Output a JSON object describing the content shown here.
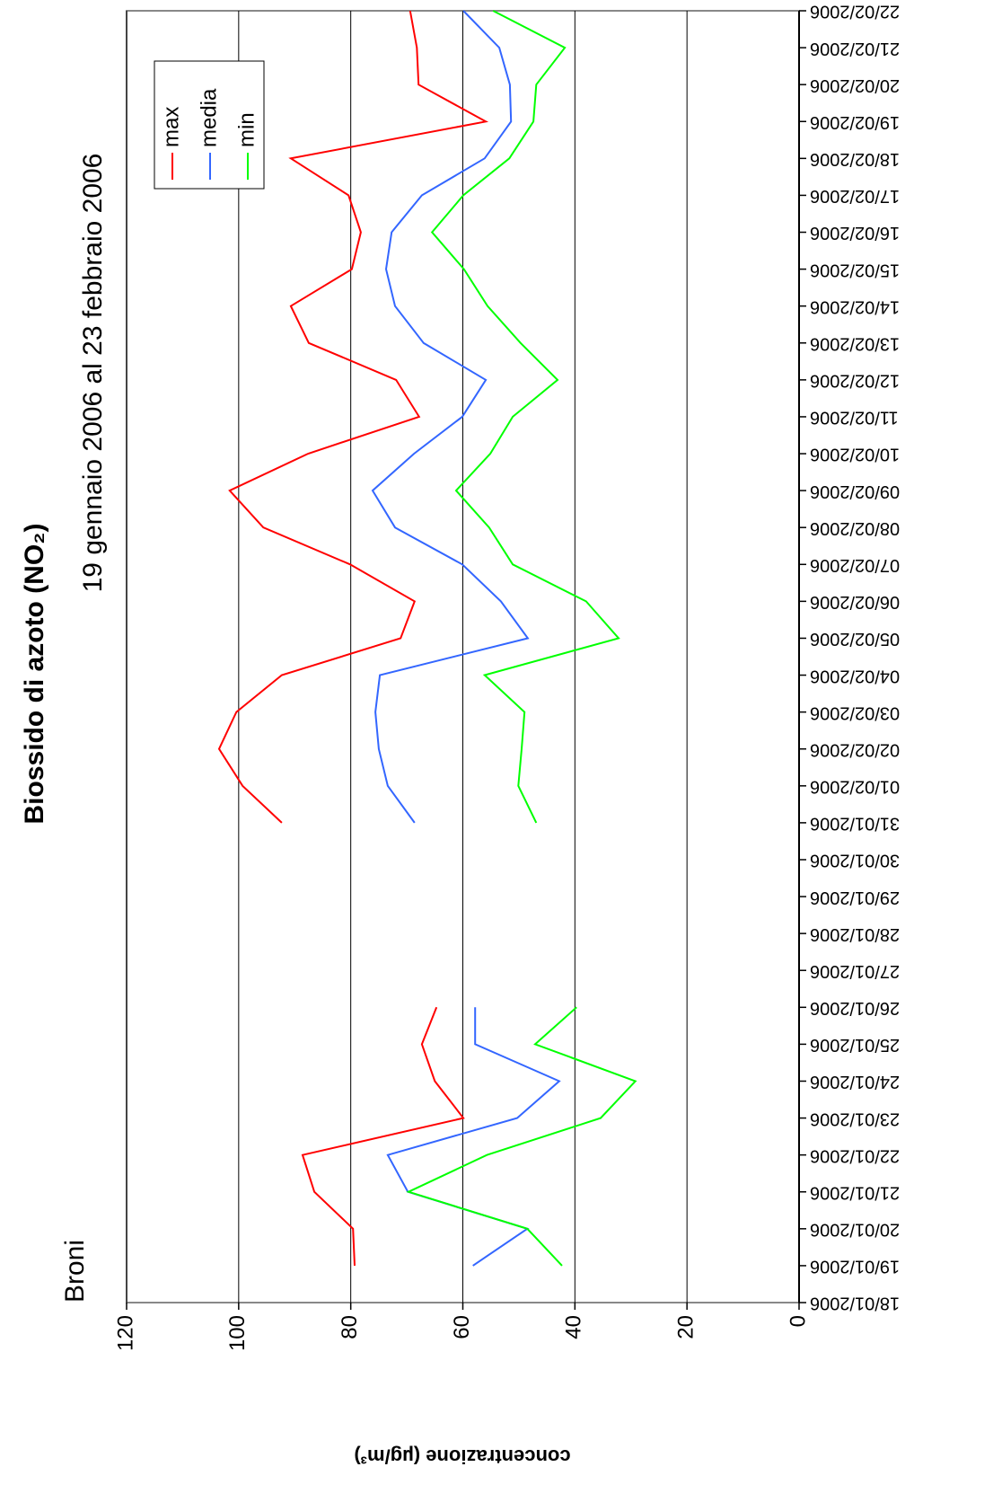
{
  "chart_data": {
    "type": "line",
    "title": "Biossido di azoto (NO₂)",
    "subtitle": "19 gennaio 2006 al 23 febbraio 2006",
    "annotation": "Broni",
    "y_label": "concentrazione (µg/m³)",
    "categories": [
      "18/01/2006",
      "19/01/2006",
      "20/01/2006",
      "21/01/2006",
      "22/01/2006",
      "23/01/2006",
      "24/01/2006",
      "25/01/2006",
      "26/01/2006",
      "27/01/2006",
      "28/01/2006",
      "29/01/2006",
      "30/01/2006",
      "31/01/2006",
      "01/02/2006",
      "02/02/2006",
      "03/02/2006",
      "04/02/2006",
      "05/02/2006",
      "06/02/2006",
      "07/02/2006",
      "08/02/2006",
      "09/02/2006",
      "10/02/2006",
      "11/02/2006",
      "12/02/2006",
      "13/02/2006",
      "14/02/2006",
      "15/02/2006",
      "16/02/2006",
      "17/02/2006",
      "18/02/2006",
      "19/02/2006",
      "20/02/2006",
      "21/02/2006",
      "22/02/2006"
    ],
    "series": [
      {
        "name": "max",
        "color": "#ff0000",
        "values": [
          null,
          79.3,
          79.6,
          86.5,
          88.6,
          59.9,
          65.0,
          67.3,
          64.7,
          null,
          null,
          null,
          null,
          92.3,
          99.3,
          103.5,
          100.4,
          92.3,
          71.1,
          68.6,
          80.1,
          95.6,
          101.6,
          87.6,
          67.8,
          71.9,
          87.5,
          90.7,
          79.8,
          78.2,
          80.4,
          90.7,
          55.9,
          67.9,
          68.2,
          69.4
        ]
      },
      {
        "name": "media",
        "color": "#3366ff",
        "values": [
          null,
          58.2,
          48.5,
          69.8,
          73.4,
          50.3,
          42.8,
          57.8,
          57.8,
          null,
          null,
          null,
          null,
          68.6,
          73.4,
          75.0,
          75.6,
          74.8,
          48.4,
          53.2,
          60.1,
          72.1,
          76.1,
          68.7,
          60.1,
          55.9,
          67.0,
          72.1,
          73.7,
          72.7,
          67.3,
          56.1,
          51.4,
          51.6,
          53.5,
          59.9
        ]
      },
      {
        "name": "min",
        "color": "#00ff00",
        "values": [
          null,
          42.3,
          48.5,
          69.7,
          55.7,
          35.4,
          29.2,
          47.1,
          39.7,
          null,
          null,
          null,
          null,
          46.9,
          50.1,
          49.5,
          49.0,
          56.1,
          32.2,
          38.0,
          51.1,
          55.3,
          61.2,
          55.1,
          51.1,
          43.1,
          49.7,
          55.6,
          59.8,
          65.5,
          59.9,
          51.7,
          47.4,
          46.9,
          41.8,
          54.6
        ]
      }
    ],
    "ylim": [
      0,
      120
    ],
    "yticks": [
      0,
      20,
      40,
      60,
      80,
      100,
      120
    ],
    "grid": true,
    "legend": "top-right"
  }
}
